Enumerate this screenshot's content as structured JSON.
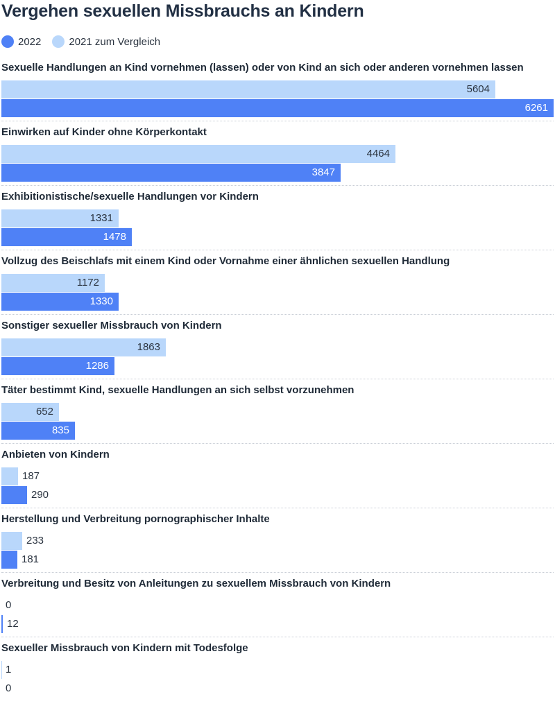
{
  "chart_data": {
    "type": "bar",
    "orientation": "horizontal",
    "title": "Vergehen sexuellen Missbrauchs an Kindern",
    "legend": [
      {
        "label": "2022",
        "color": "#4f81f6"
      },
      {
        "label": "2021 zum Vergleich",
        "color": "#b9d7fb"
      }
    ],
    "legend_position": "top-left",
    "categories": [
      "Sexuelle Handlungen an Kind vornehmen (lassen) oder von Kind an sich oder anderen vornehmen lassen",
      "Einwirken auf Kinder ohne Körperkontakt",
      "Exhibitionistische/sexuelle Handlungen vor Kindern",
      "Vollzug des Beischlafs mit einem Kind oder Vornahme einer ähnlichen sexuellen Handlung",
      "Sonstiger sexueller Missbrauch von Kindern",
      "Täter bestimmt Kind, sexuelle Handlungen an sich selbst vorzunehmen",
      "Anbieten von Kindern",
      "Herstellung und Verbreitung pornographischer Inhalte",
      "Verbreitung und Besitz von Anleitungen zu sexuellem Missbrauch von Kindern",
      "Sexueller Missbrauch von Kindern mit Todesfolge"
    ],
    "series": [
      {
        "name": "2021 zum Vergleich",
        "values": [
          5604,
          4464,
          1331,
          1172,
          1863,
          652,
          187,
          233,
          0,
          1
        ]
      },
      {
        "name": "2022",
        "values": [
          6261,
          3847,
          1478,
          1330,
          1286,
          835,
          290,
          181,
          12,
          0
        ]
      }
    ],
    "xlim": [
      0,
      6261
    ],
    "grid": false
  }
}
